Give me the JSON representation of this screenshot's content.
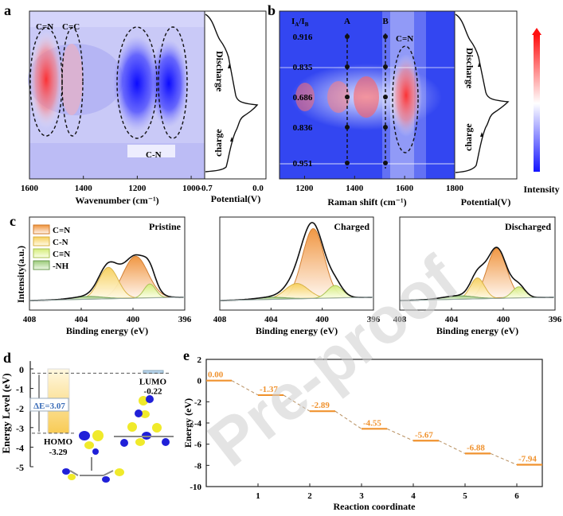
{
  "panels": {
    "a": {
      "letter": "a"
    },
    "b": {
      "letter": "b"
    },
    "c": {
      "letter": "c"
    },
    "d": {
      "letter": "d"
    },
    "e": {
      "letter": "e"
    }
  },
  "watermark": "Pre-proof",
  "chart_data": [
    {
      "id": "a",
      "type": "heatmap",
      "title": "",
      "xlabel": "Wavenumber (cm⁻¹)",
      "xlim": [
        1600,
        950
      ],
      "xticks": [
        1600,
        1400,
        1200,
        1000
      ],
      "annotations": [
        {
          "text": "C=N",
          "x": 1530,
          "kind": "increase"
        },
        {
          "text": "C=C",
          "x": 1425,
          "kind": "increase"
        },
        {
          "text": "C-N",
          "x": 1175,
          "kind": "decrease"
        },
        {
          "text": "C-N",
          "x": 1040,
          "kind": "decrease"
        }
      ],
      "potential_panel": {
        "xlabel": "Potential(V)",
        "xlim": [
          -0.7,
          0.0
        ],
        "xticks": [
          "-0.7",
          "0.0"
        ],
        "labels": [
          "Discharge",
          "charge"
        ]
      }
    },
    {
      "id": "b",
      "type": "heatmap",
      "xlabel": "Raman shift (cm⁻¹)",
      "xlim": [
        1100,
        1800
      ],
      "xticks": [
        1200,
        1400,
        1600,
        1800
      ],
      "ratio_header": "IA/IB",
      "band_labels": [
        {
          "text": "A",
          "x": 1370
        },
        {
          "text": "B",
          "x": 1525
        }
      ],
      "ratios": [
        "0.916",
        "0.835",
        "0.686",
        "0.836",
        "0.951"
      ],
      "annotation": "C=N",
      "potential_panel": {
        "xlabel": "Potential(V)",
        "labels": [
          "Discharge",
          "charge"
        ]
      },
      "colorbar": {
        "label": "Intensity",
        "colors": [
          "#1a1aff",
          "#ffffff",
          "#ff0000"
        ]
      }
    },
    {
      "id": "c",
      "type": "area",
      "ylabel": "Intensity(a.u.)",
      "xlabel": "Binding energy (eV)",
      "xlim": [
        408,
        396
      ],
      "xticks": [
        408,
        404,
        400,
        396
      ],
      "legend": [
        {
          "name": "C=N",
          "color": "#f0923a"
        },
        {
          "name": "C-N",
          "color": "#f7cf5a"
        },
        {
          "name": "C≡N",
          "color": "#d4ec7a"
        },
        {
          "name": "-NH",
          "color": "#9ccb7a"
        }
      ],
      "subplots": [
        {
          "title": "Pristine",
          "peaks": [
            {
              "name": "C=N",
              "center": 399.8,
              "height": 0.6,
              "width": 0.95
            },
            {
              "name": "C-N",
              "center": 401.9,
              "height": 0.45,
              "width": 0.75
            },
            {
              "name": "C≡N",
              "center": 398.7,
              "height": 0.2,
              "width": 0.45
            },
            {
              "name": "-NH",
              "center": 403.5,
              "height": 0.04,
              "width": 1.2
            }
          ]
        },
        {
          "title": "Charged",
          "peaks": [
            {
              "name": "C=N",
              "center": 400.7,
              "height": 1.0,
              "width": 0.85
            },
            {
              "name": "C-N",
              "center": 402.0,
              "height": 0.22,
              "width": 0.9
            },
            {
              "name": "C≡N",
              "center": 399.0,
              "height": 0.18,
              "width": 0.6
            },
            {
              "name": "-NH",
              "center": 404.0,
              "height": 0.03,
              "width": 1.2
            }
          ]
        },
        {
          "title": "Discharged",
          "peaks": [
            {
              "name": "C=N",
              "center": 400.5,
              "height": 0.72,
              "width": 0.75
            },
            {
              "name": "C-N",
              "center": 402.0,
              "height": 0.3,
              "width": 0.55
            },
            {
              "name": "C≡N",
              "center": 398.8,
              "height": 0.16,
              "width": 0.5
            },
            {
              "name": "-NH",
              "center": 403.5,
              "height": 0.05,
              "width": 1.2
            }
          ]
        }
      ]
    },
    {
      "id": "d",
      "type": "bar",
      "ylabel": "Energy Level (eV)",
      "ylim": [
        -5,
        0.4
      ],
      "yticks": [
        0,
        -1,
        -2,
        -3,
        -4,
        -5
      ],
      "homo": {
        "label": "HOMO",
        "value": -3.29
      },
      "lumo": {
        "label": "LUMO",
        "value": -0.22
      },
      "gap_label": "ΔE=3.07"
    },
    {
      "id": "e",
      "type": "line",
      "xlabel": "Reaction coordinate",
      "ylabel": "Energy (eV)",
      "ylim": [
        -10,
        2
      ],
      "yticks": [
        2,
        0,
        -2,
        -4,
        -6,
        -8,
        -10
      ],
      "xlim": [
        0,
        6.5
      ],
      "xticks": [
        1,
        2,
        3,
        4,
        5,
        6
      ],
      "x": [
        0,
        1,
        2,
        3,
        4,
        5,
        6
      ],
      "values": [
        0.0,
        -1.37,
        -2.89,
        -4.55,
        -5.67,
        -6.88,
        -7.94
      ],
      "value_labels": [
        "0.00",
        "-1.37",
        "-2.89",
        "-4.55",
        "-5.67",
        "-6.88",
        "-7.94"
      ],
      "color": "#f0922e"
    }
  ]
}
